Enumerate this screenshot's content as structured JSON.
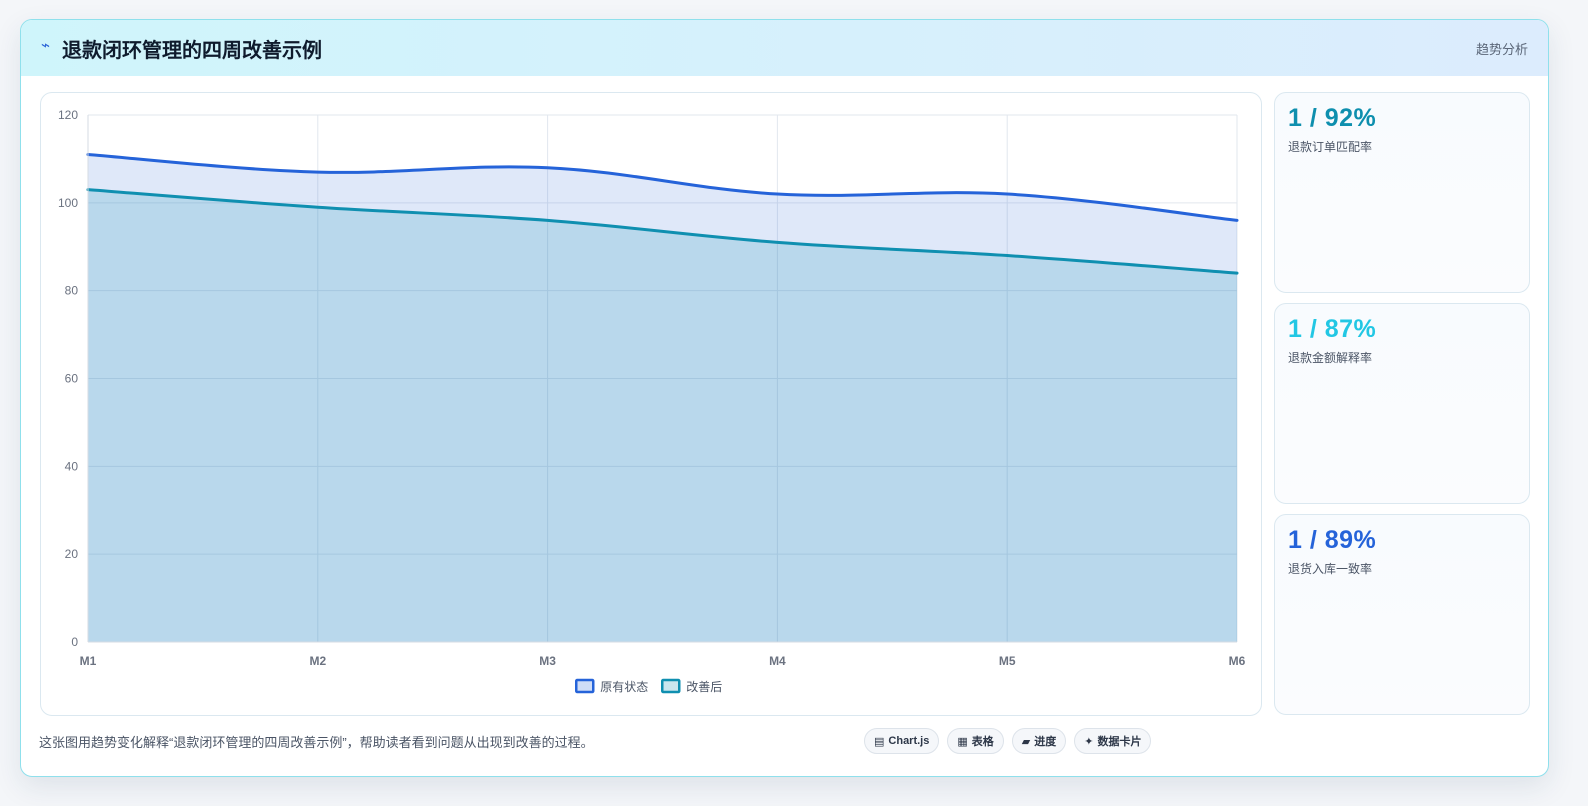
{
  "header": {
    "icon": "bolt-icon",
    "title": "退款闭环管理的四周改善示例",
    "tag": "趋势分析"
  },
  "colors": {
    "series_a": "#2563d9",
    "series_b": "#0f8fb0",
    "kpi_1": "#0e8fae",
    "kpi_2": "#22c7e4",
    "kpi_3": "#2563d9"
  },
  "chart_data": {
    "type": "area",
    "x": [
      "M1",
      "M2",
      "M3",
      "M4",
      "M5",
      "M6"
    ],
    "series": [
      {
        "name": "原有状态",
        "values": [
          111,
          107,
          108,
          102,
          102,
          96
        ]
      },
      {
        "name": "改善后",
        "values": [
          103,
          99,
          96,
          91,
          88,
          84
        ]
      }
    ],
    "ylim": [
      0,
      120
    ],
    "yticks": [
      0,
      20,
      40,
      60,
      80,
      100,
      120
    ],
    "grid": true,
    "legend": "bottom-center"
  },
  "kpis": [
    {
      "value": "1 / 92%",
      "label": "退款订单匹配率"
    },
    {
      "value": "1 / 87%",
      "label": "退款金额解释率"
    },
    {
      "value": "1 / 89%",
      "label": "退货入库一致率"
    }
  ],
  "footer": {
    "description": "这张图用趋势变化解释“退款闭环管理的四周改善示例”，帮助读者看到问题从出现到改善的过程。",
    "chips": [
      {
        "icon": "chart-icon",
        "glyph": "▤",
        "label": "Chart.js"
      },
      {
        "icon": "table-icon",
        "glyph": "▦",
        "label": "表格"
      },
      {
        "icon": "progress-icon",
        "glyph": "▰",
        "label": "进度"
      },
      {
        "icon": "sparkle-icon",
        "glyph": "✦",
        "label": "数据卡片"
      }
    ]
  }
}
